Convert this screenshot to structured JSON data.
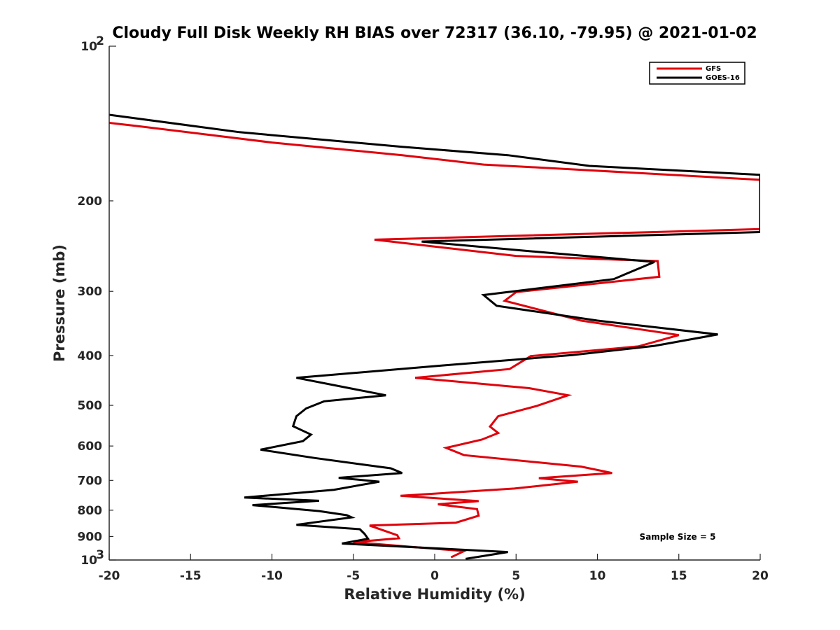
{
  "chart_data": {
    "type": "line",
    "title": "Cloudy Full Disk Weekly RH BIAS over 72317 (36.10, -79.95) @ 2021-01-02",
    "xlabel": "Relative Humidity (%)",
    "ylabel": "Pressure (mb)",
    "xlim": [
      -20,
      20
    ],
    "ylim": [
      100,
      1000
    ],
    "y_scale": "log",
    "y_reversed": true,
    "x_ticks": [
      -20,
      -15,
      -10,
      -5,
      0,
      5,
      10,
      15,
      20
    ],
    "x_tick_labels": [
      "-20",
      "-15",
      "-10",
      "-5",
      "0",
      "5",
      "10",
      "15",
      "20"
    ],
    "y_ticks": [
      200,
      300,
      400,
      500,
      600,
      700,
      800,
      900
    ],
    "y_tick_labels": [
      "200",
      "300",
      "400",
      "500",
      "600",
      "700",
      "800",
      "900"
    ],
    "y_end_labels": {
      "top": {
        "base": "10",
        "exp": "2"
      },
      "bottom": {
        "base": "10",
        "exp": "3"
      }
    },
    "grid": false,
    "legend_position": "top-right",
    "annotation": "Sample Size = 5",
    "series": [
      {
        "name": "GFS",
        "color": "#e0000b",
        "points": [
          [
            -20,
            141
          ],
          [
            -18.3,
            143
          ],
          [
            -10,
            154
          ],
          [
            -2,
            163
          ],
          [
            3,
            170
          ],
          [
            9,
            174
          ],
          [
            20,
            182
          ],
          [
            20,
            227
          ],
          [
            -3.7,
            238
          ],
          [
            5,
            256
          ],
          [
            13.7,
            262
          ],
          [
            13.8,
            281
          ],
          [
            5,
            301
          ],
          [
            4.3,
            313
          ],
          [
            9,
            342
          ],
          [
            15,
            365
          ],
          [
            12.5,
            384
          ],
          [
            5.9,
            401
          ],
          [
            4.6,
            425
          ],
          [
            -1.2,
            442
          ],
          [
            5.8,
            463
          ],
          [
            8.2,
            478
          ],
          [
            6.3,
            501
          ],
          [
            3.9,
            525
          ],
          [
            3.4,
            550
          ],
          [
            3.9,
            566
          ],
          [
            2.9,
            583
          ],
          [
            0.7,
            605
          ],
          [
            1.8,
            625
          ],
          [
            9,
            658
          ],
          [
            10.9,
            677
          ],
          [
            6.4,
            693
          ],
          [
            8.8,
            704
          ],
          [
            4.9,
            726
          ],
          [
            -2.1,
            750
          ],
          [
            2.7,
            768
          ],
          [
            0.2,
            779
          ],
          [
            2.6,
            796
          ],
          [
            2.7,
            820
          ],
          [
            1.3,
            846
          ],
          [
            -4,
            857
          ],
          [
            -2.3,
            895
          ],
          [
            -2.2,
            907
          ],
          [
            -5,
            923
          ],
          [
            1.8,
            961
          ],
          [
            1,
            988
          ]
        ]
      },
      {
        "name": "GOES-16",
        "color": "#000000",
        "points": [
          [
            -20,
            136
          ],
          [
            -12,
            147
          ],
          [
            -2,
            157
          ],
          [
            4.5,
            163
          ],
          [
            9.5,
            171
          ],
          [
            20,
            178
          ],
          [
            20,
            230
          ],
          [
            -0.8,
            240
          ],
          [
            5.5,
            250
          ],
          [
            13.5,
            263
          ],
          [
            11,
            284
          ],
          [
            3,
            305
          ],
          [
            3.8,
            320
          ],
          [
            10,
            342
          ],
          [
            17.4,
            364
          ],
          [
            13.5,
            383
          ],
          [
            8.5,
            399
          ],
          [
            0.6,
            418
          ],
          [
            -8.5,
            442
          ],
          [
            -3,
            478
          ],
          [
            -6.8,
            491
          ],
          [
            -7.9,
            507
          ],
          [
            -8.5,
            525
          ],
          [
            -8.7,
            549
          ],
          [
            -7.6,
            570
          ],
          [
            -8.1,
            587
          ],
          [
            -10.7,
            610
          ],
          [
            -7.4,
            633
          ],
          [
            -2.7,
            663
          ],
          [
            -2,
            677
          ],
          [
            -5.9,
            692
          ],
          [
            -3.4,
            704
          ],
          [
            -6.2,
            730
          ],
          [
            -11.7,
            756
          ],
          [
            -7.1,
            767
          ],
          [
            -11.2,
            782
          ],
          [
            -7.1,
            803
          ],
          [
            -5.4,
            818
          ],
          [
            -5.1,
            826
          ],
          [
            -8.5,
            854
          ],
          [
            -4.6,
            871
          ],
          [
            -4.3,
            890
          ],
          [
            -4.1,
            909
          ],
          [
            -5.7,
            929
          ],
          [
            4.5,
            965
          ],
          [
            1.9,
            995
          ]
        ]
      }
    ]
  }
}
